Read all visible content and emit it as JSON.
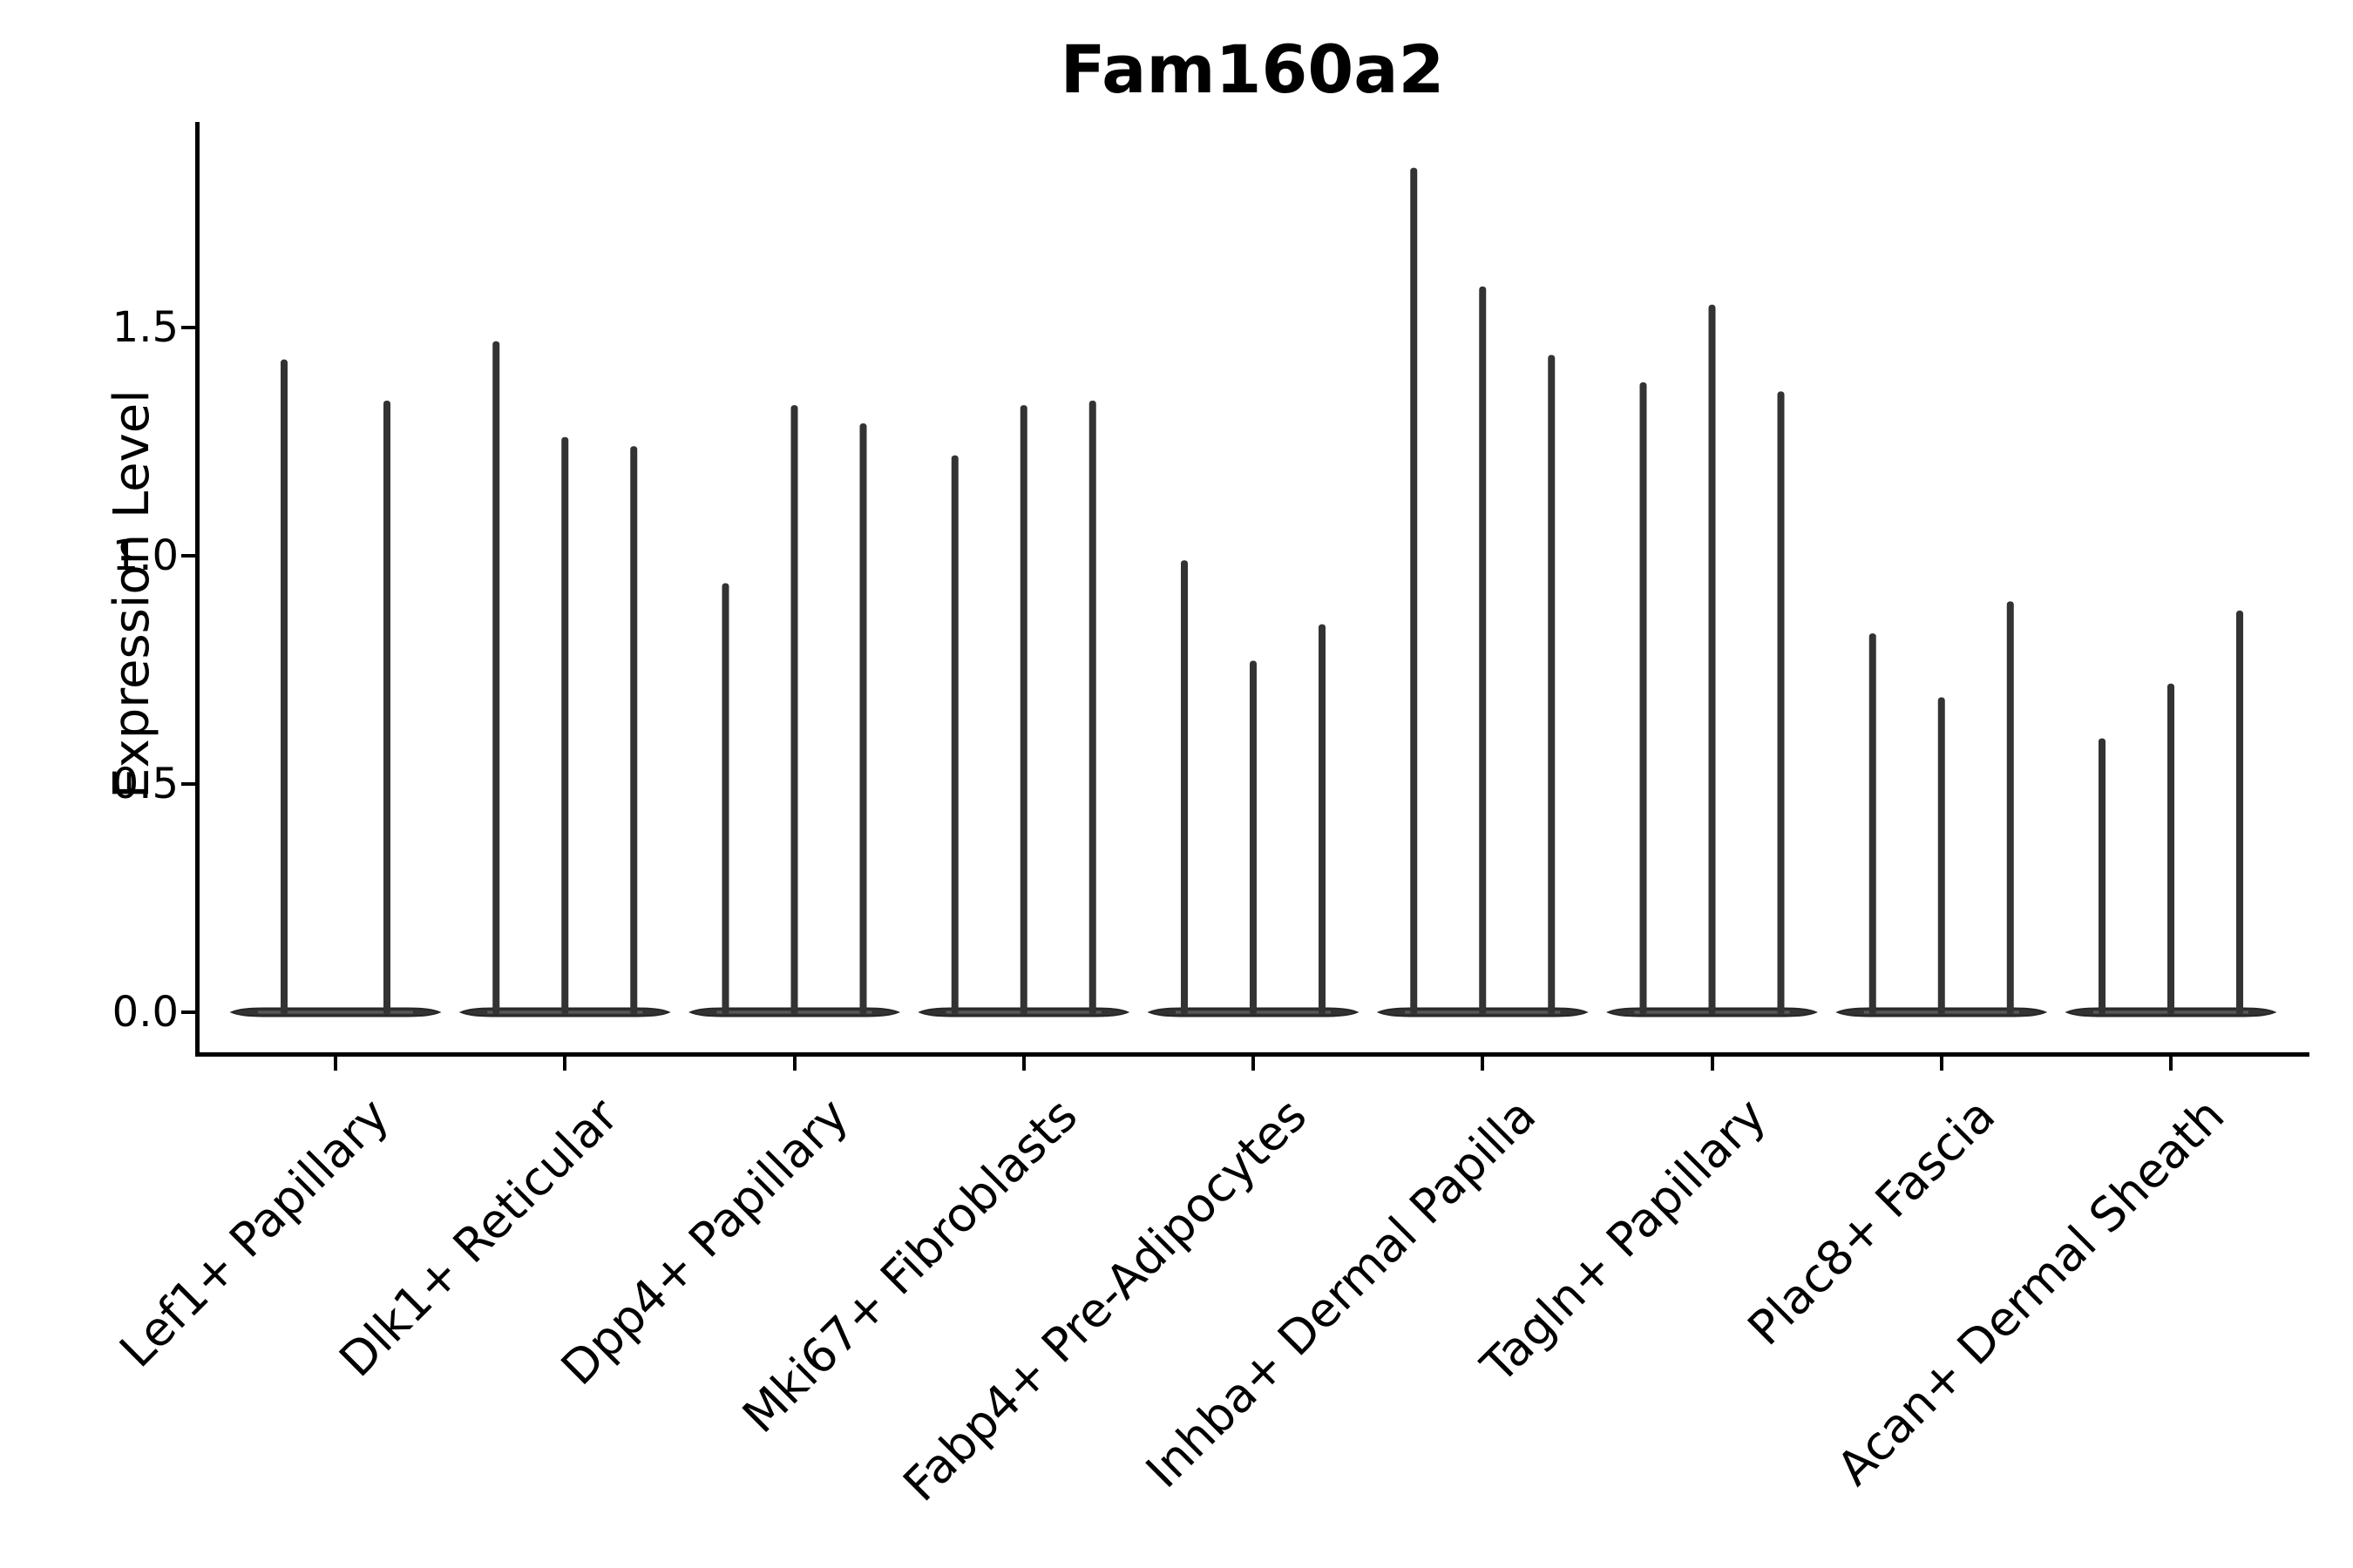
{
  "chart_data": {
    "type": "violin",
    "title": "Fam160a2",
    "ylabel": "Expression Level",
    "xlabel": "",
    "ytick_labels": [
      "0.0",
      "0.5",
      "1.0",
      "1.5"
    ],
    "ytick_values": [
      0.0,
      0.5,
      1.0,
      1.5
    ],
    "ylim": [
      -0.09,
      1.95
    ],
    "grid": false,
    "legend_position": "none",
    "categories": [
      "Lef1+ Papillary",
      "Dlk1+ Reticular",
      "Dpp4+ Papillary",
      "Mki67+ Fibroblasts",
      "Fabp4+ Pre-Adipocytes",
      "Inhba+ Dermal Papilla",
      "Tagln+ Papillary",
      "Plac8+ Fascia",
      "Acan+ Dermal Sheath"
    ],
    "groups": [
      {
        "category": "Lef1+ Papillary",
        "spike_max_values": [
          1.43,
          1.34
        ]
      },
      {
        "category": "Dlk1+ Reticular",
        "spike_max_values": [
          1.47,
          1.26,
          1.24
        ]
      },
      {
        "category": "Dpp4+ Papillary",
        "spike_max_values": [
          0.94,
          1.33,
          1.29
        ]
      },
      {
        "category": "Mki67+ Fibroblasts",
        "spike_max_values": [
          1.22,
          1.33,
          1.34
        ]
      },
      {
        "category": "Fabp4+ Pre-Adipocytes",
        "spike_max_values": [
          0.99,
          0.77,
          0.85
        ]
      },
      {
        "category": "Inhba+ Dermal Papilla",
        "spike_max_values": [
          1.85,
          1.59,
          1.44
        ]
      },
      {
        "category": "Tagln+ Papillary",
        "spike_max_values": [
          1.38,
          1.55,
          1.36
        ]
      },
      {
        "category": "Plac8+ Fascia",
        "spike_max_values": [
          0.83,
          0.69,
          0.9
        ]
      },
      {
        "category": "Acan+ Dermal Sheath",
        "spike_max_values": [
          0.6,
          0.72,
          0.88
        ]
      }
    ]
  },
  "colors": {
    "violin_fill": "#333333",
    "violin_edge": "#262626",
    "baseline_highlight": "#888888",
    "axis": "#000000",
    "text": "#000000",
    "background": "#ffffff"
  }
}
